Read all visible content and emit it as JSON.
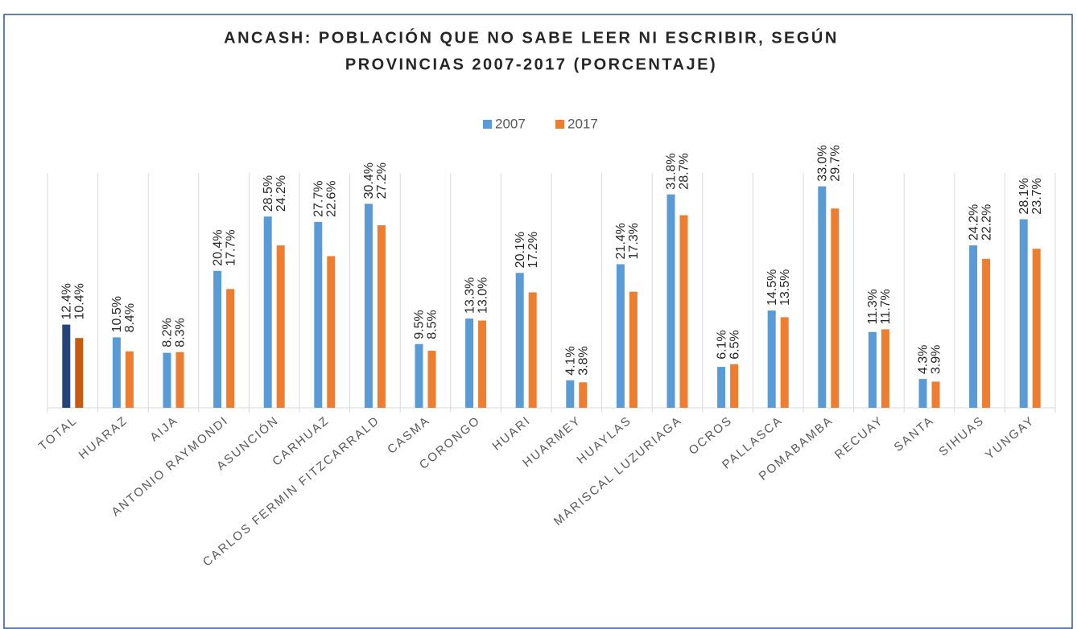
{
  "chart_data": {
    "type": "bar",
    "title": [
      "ANCASH: POBLACIÓN QUE NO SABE LEER NI ESCRIBIR, SEGÚN",
      "PROVINCIAS 2007-2017 (PORCENTAJE)"
    ],
    "categories": [
      "TOTAL",
      "HUARAZ",
      "AIJA",
      "ANTONIO RAYMONDI",
      "ASUNCIÓN",
      "CARHUAZ",
      "CARLOS FERMIN FITZCARRALD",
      "CASMA",
      "CORONGO",
      "HUARI",
      "HUARMEY",
      "HUAYLAS",
      "MARISCAL LUZURIAGA",
      "OCROS",
      "PALLASCA",
      "POMABAMBA",
      "RECUAY",
      "SANTA",
      "SIHUAS",
      "YUNGAY"
    ],
    "series": [
      {
        "name": "2007",
        "color": "#5b9bd5",
        "colors": [
          "#264478",
          "#5b9bd5",
          "#5b9bd5",
          "#5b9bd5",
          "#5b9bd5",
          "#5b9bd5",
          "#5b9bd5",
          "#5b9bd5",
          "#5b9bd5",
          "#5b9bd5",
          "#5b9bd5",
          "#5b9bd5",
          "#5b9bd5",
          "#5b9bd5",
          "#5b9bd5",
          "#5b9bd5",
          "#5b9bd5",
          "#5b9bd5",
          "#5b9bd5",
          "#5b9bd5"
        ],
        "values": [
          12.4,
          10.5,
          8.2,
          20.4,
          28.5,
          27.7,
          30.4,
          9.5,
          13.3,
          20.1,
          4.1,
          21.4,
          31.8,
          6.1,
          14.5,
          33.0,
          11.3,
          4.3,
          24.2,
          28.1
        ],
        "value_labels": [
          "12.4%",
          "10.5%",
          "8.2%",
          "20.4%",
          "28.5%",
          "27.7%",
          "30.4%",
          "9.5%",
          "13.3%",
          "20.1%",
          "4.1%",
          "21.4%",
          "31.8%",
          "6.1%",
          "14.5%",
          "33.0%",
          "11.3%",
          "4.3%",
          "24.2%",
          "28.1%"
        ]
      },
      {
        "name": "2017",
        "color": "#ed7d31",
        "colors": [
          "#c55a11",
          "#ed7d31",
          "#ed7d31",
          "#ed7d31",
          "#ed7d31",
          "#ed7d31",
          "#ed7d31",
          "#ed7d31",
          "#ed7d31",
          "#ed7d31",
          "#ed7d31",
          "#ed7d31",
          "#ed7d31",
          "#ed7d31",
          "#ed7d31",
          "#ed7d31",
          "#ed7d31",
          "#ed7d31",
          "#ed7d31",
          "#ed7d31"
        ],
        "values": [
          10.4,
          8.4,
          8.3,
          17.7,
          24.2,
          22.6,
          27.2,
          8.5,
          13.0,
          17.2,
          3.8,
          17.3,
          28.7,
          6.5,
          13.5,
          29.7,
          11.7,
          3.9,
          22.2,
          23.7
        ],
        "value_labels": [
          "10.4%",
          "8.4%",
          "8.3%",
          "17.7%",
          "24.2%",
          "22.6%",
          "27.2%",
          "8.5%",
          "13.0%",
          "17.2%",
          "3.8%",
          "17.3%",
          "28.7%",
          "6.5%",
          "13.5%",
          "29.7%",
          "11.7%",
          "3.9%",
          "22.2%",
          "23.7%"
        ]
      }
    ],
    "ylim": [
      0,
      35
    ]
  }
}
